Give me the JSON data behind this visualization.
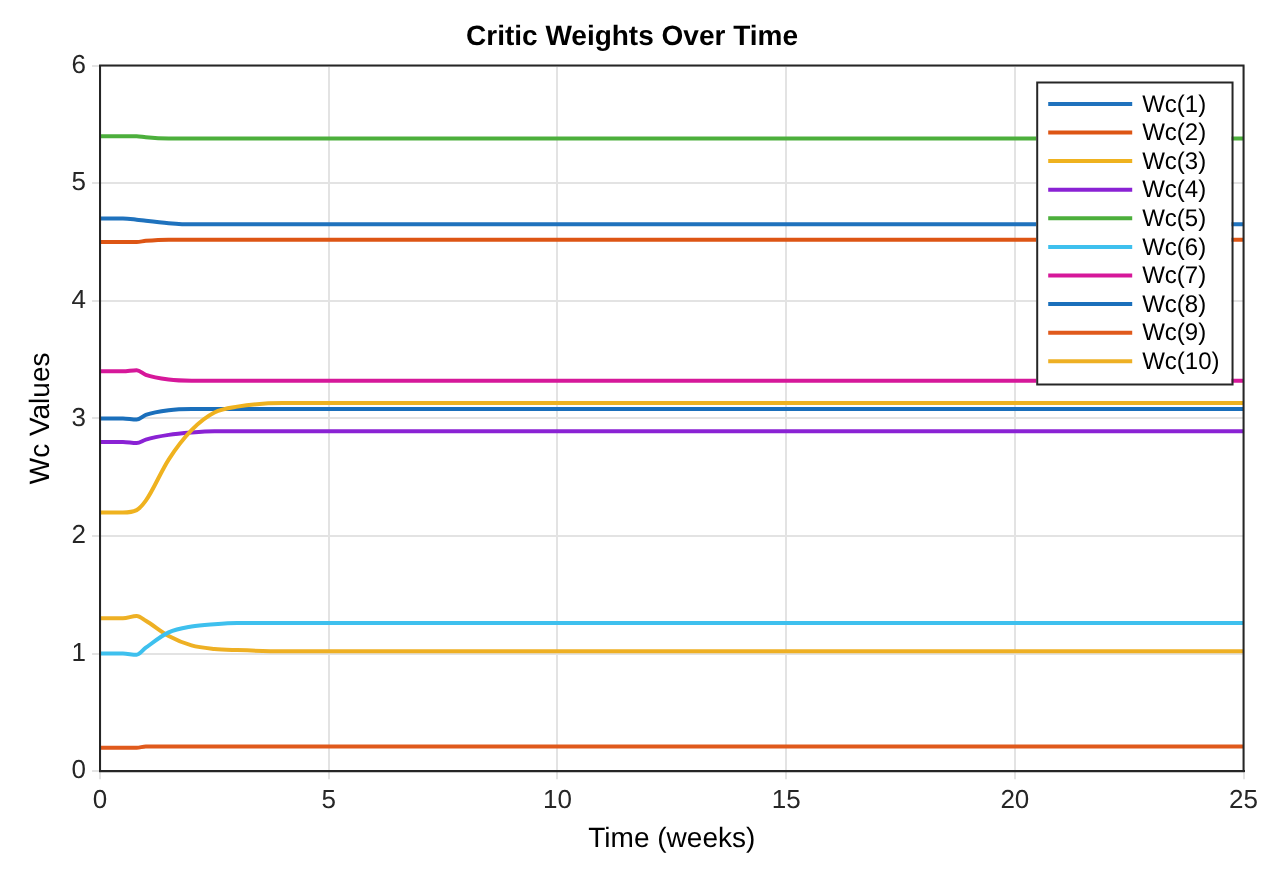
{
  "chart_data": {
    "type": "line",
    "title": "Critic Weights Over Time",
    "xlabel": "Time (weeks)",
    "ylabel": "Wc Values",
    "x": [
      0,
      0.5,
      0.8,
      1,
      1.5,
      2,
      2.5,
      3,
      4,
      5,
      25
    ],
    "xlim": [
      0,
      25
    ],
    "xticks": [
      0,
      5,
      10,
      15,
      20,
      25
    ],
    "ylim": [
      0,
      6
    ],
    "yticks": [
      0,
      1,
      2,
      3,
      4,
      5,
      6
    ],
    "grid": true,
    "legend": "top right",
    "marker": "none",
    "line_style": "solid",
    "series": [
      {
        "name": "Wc(1)",
        "color": "#1f72bd",
        "values": [
          4.7,
          4.7,
          4.69,
          4.68,
          4.66,
          4.65,
          4.65,
          4.65,
          4.65,
          4.65,
          4.65
        ]
      },
      {
        "name": "Wc(2)",
        "color": "#dd5514",
        "values": [
          4.5,
          4.5,
          4.5,
          4.51,
          4.52,
          4.52,
          4.52,
          4.52,
          4.52,
          4.52,
          4.52
        ]
      },
      {
        "name": "Wc(3)",
        "color": "#efb21f",
        "values": [
          2.2,
          2.2,
          2.22,
          2.3,
          2.65,
          2.9,
          3.05,
          3.1,
          3.13,
          3.13,
          3.13
        ]
      },
      {
        "name": "Wc(4)",
        "color": "#8a22d4",
        "values": [
          2.8,
          2.8,
          2.79,
          2.82,
          2.86,
          2.88,
          2.89,
          2.89,
          2.89,
          2.89,
          2.89
        ]
      },
      {
        "name": "Wc(5)",
        "color": "#4caf3c",
        "values": [
          5.4,
          5.4,
          5.4,
          5.39,
          5.38,
          5.38,
          5.38,
          5.38,
          5.38,
          5.38,
          5.38
        ]
      },
      {
        "name": "Wc(6)",
        "color": "#3ec0ee",
        "values": [
          1.0,
          1.0,
          0.99,
          1.05,
          1.18,
          1.23,
          1.25,
          1.26,
          1.26,
          1.26,
          1.26
        ]
      },
      {
        "name": "Wc(7)",
        "color": "#d6189a",
        "values": [
          3.4,
          3.4,
          3.41,
          3.37,
          3.33,
          3.32,
          3.32,
          3.32,
          3.32,
          3.32,
          3.32
        ]
      },
      {
        "name": "Wc(8)",
        "color": "#1a6fbb",
        "values": [
          3.0,
          3.0,
          2.99,
          3.03,
          3.07,
          3.08,
          3.08,
          3.08,
          3.08,
          3.08,
          3.08
        ]
      },
      {
        "name": "Wc(9)",
        "color": "#e05a1c",
        "values": [
          0.2,
          0.2,
          0.2,
          0.21,
          0.21,
          0.21,
          0.21,
          0.21,
          0.21,
          0.21,
          0.21
        ]
      },
      {
        "name": "Wc(10)",
        "color": "#eeb024",
        "values": [
          1.3,
          1.3,
          1.32,
          1.28,
          1.15,
          1.07,
          1.04,
          1.03,
          1.02,
          1.02,
          1.02
        ]
      }
    ]
  }
}
